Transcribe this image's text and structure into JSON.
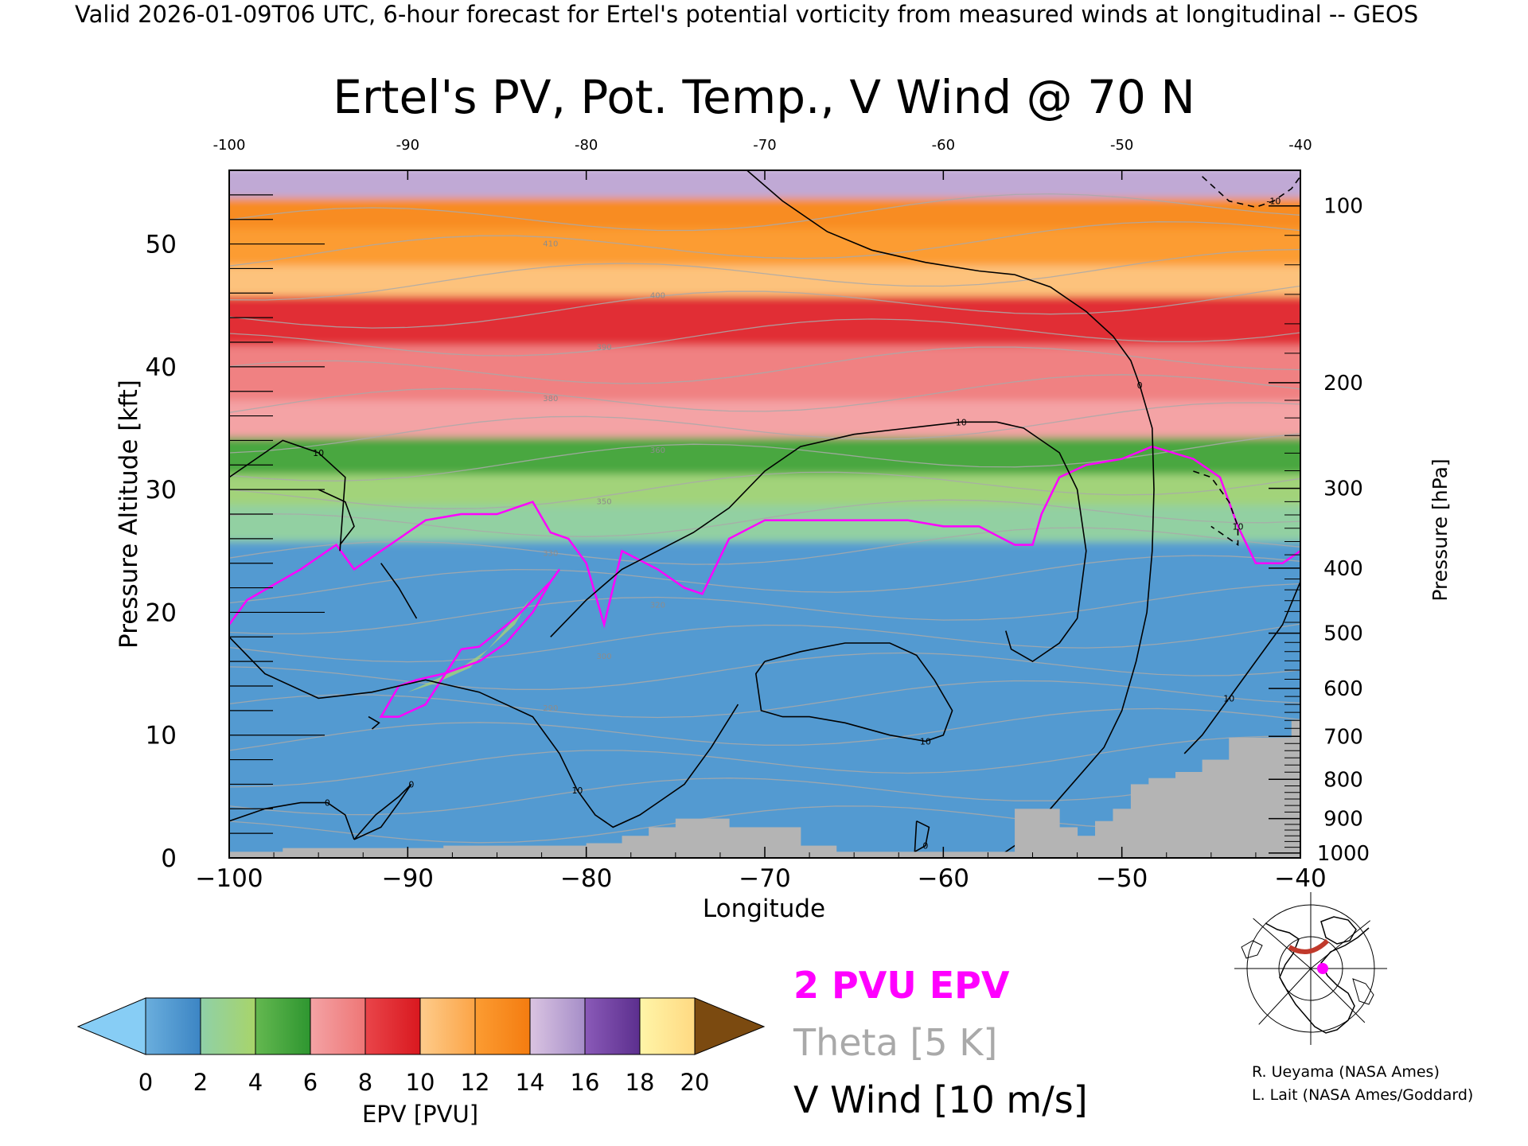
{
  "header": {
    "valid_line": "Valid 2026-01-09T06 UTC, 6-hour forecast for Ertel's potential vorticity from measured winds at longitudinal -- GEOS"
  },
  "chart_data": {
    "type": "heatmap",
    "title": "Ertel's PV, Pot. Temp., V Wind @ 70 N",
    "xlabel": "Longitude",
    "ylabel_left": "Pressure Altitude [kft]",
    "ylabel_right": "Pressure [hPa]",
    "xlim": [
      -100,
      -40
    ],
    "ylim_kft": [
      0,
      56
    ],
    "x_ticks": [
      "-100",
      "-90",
      "-80",
      "-70",
      "-60",
      "-50",
      "-40"
    ],
    "x_ticks_bottom": [
      "−100",
      "−90",
      "−80",
      "−70",
      "−60",
      "−50",
      "−40"
    ],
    "y_ticks_left": [
      "0",
      "10",
      "20",
      "30",
      "40",
      "50"
    ],
    "y_ticks_left_values": [
      0,
      10,
      20,
      30,
      40,
      50
    ],
    "pressure_ticks": [
      {
        "label": "100",
        "kft": 53.1
      },
      {
        "label": "200",
        "kft": 38.7
      },
      {
        "label": "300",
        "kft": 30.1
      },
      {
        "label": "400",
        "kft": 23.6
      },
      {
        "label": "500",
        "kft": 18.3
      },
      {
        "label": "600",
        "kft": 13.8
      },
      {
        "label": "700",
        "kft": 9.9
      },
      {
        "label": "800",
        "kft": 6.4
      },
      {
        "label": "900",
        "kft": 3.2
      },
      {
        "label": "1000",
        "kft": 0.4
      }
    ],
    "epv_layers_pvu": [
      {
        "bottom_kft": 0,
        "pvu": 1.0
      },
      {
        "bottom_kft": 26,
        "pvu": 2.2
      },
      {
        "bottom_kft": 29,
        "pvu": 3.5
      },
      {
        "bottom_kft": 31.5,
        "pvu": 5.0
      },
      {
        "bottom_kft": 34.5,
        "pvu": 6.0
      },
      {
        "bottom_kft": 37.5,
        "pvu": 7.5
      },
      {
        "bottom_kft": 42,
        "pvu": 9.0
      },
      {
        "bottom_kft": 46,
        "pvu": 10.5
      },
      {
        "bottom_kft": 48.5,
        "pvu": 12.0
      },
      {
        "bottom_kft": 51.5,
        "pvu": 13.0
      },
      {
        "bottom_kft": 54,
        "pvu": 15.0
      }
    ],
    "pv2_contour": {
      "label": "2 PVU EPV",
      "color": "#ff00ff",
      "x": [
        -100,
        -99,
        -96,
        -94,
        -93,
        -91,
        -89,
        -87,
        -85,
        -84,
        -83,
        -82,
        -81,
        -80,
        -79,
        -78.5,
        -78,
        -76,
        -74.5,
        -73.5,
        -72,
        -70,
        -68,
        -66,
        -64,
        -62,
        -60,
        -58,
        -56,
        -55,
        -54.5,
        -53.5,
        -52,
        -50,
        -48.3,
        -46,
        -44.5,
        -43.5,
        -42.5,
        -41,
        -40
      ],
      "y": [
        19,
        21,
        23.5,
        25.5,
        23.5,
        25.5,
        27.5,
        28,
        28,
        28.5,
        29,
        26.5,
        26,
        24,
        19,
        22,
        25,
        23.5,
        22,
        21.5,
        26,
        27.5,
        27.5,
        27.5,
        27.5,
        27.5,
        27,
        27,
        25.5,
        25.5,
        28,
        31,
        32,
        32.5,
        33.5,
        32.5,
        31,
        27,
        24,
        24,
        25
      ]
    },
    "pv2_low_contour": {
      "x": [
        -87,
        -86,
        -84,
        -83,
        -82,
        -81.5,
        -82,
        -83,
        -84.5,
        -86,
        -88,
        -89.5,
        -90.5,
        -91.5,
        -90.5,
        -89,
        -87
      ],
      "y": [
        17,
        17.2,
        19.5,
        21,
        22.5,
        23.5,
        22.5,
        20,
        17.5,
        16,
        15,
        14.5,
        14,
        11.5,
        11.5,
        12.5,
        17
      ]
    },
    "pv_cutoff_patch": {
      "x": [
        -86.5,
        -85.5,
        -84,
        -83.2,
        -84,
        -85.5,
        -87,
        -88.5,
        -90,
        -88.5,
        -86.5
      ],
      "y": [
        15.5,
        17,
        19.5,
        21,
        19,
        17,
        15.5,
        14.5,
        13.5,
        14.2,
        15.5
      ]
    },
    "v_wind_contours": [
      {
        "label": "0",
        "x": [
          -71,
          -69,
          -66.5,
          -64,
          -61,
          -58,
          -56,
          -54,
          -52,
          -50.5,
          -49.5,
          -49,
          -48.3,
          -48.2,
          -48.3,
          -48.6,
          -49.2,
          -50,
          -51,
          -52.5,
          -54,
          -55.5,
          -57
        ],
        "y": [
          56,
          53.5,
          51,
          49.5,
          48.5,
          47.8,
          47.5,
          46.5,
          44.5,
          42.5,
          40.5,
          38.5,
          35,
          30,
          25,
          20,
          16,
          12,
          9,
          6.5,
          4,
          1.5,
          0
        ]
      },
      {
        "label": "10",
        "x": [
          -82,
          -80,
          -78,
          -76,
          -74,
          -72,
          -70,
          -68,
          -65,
          -62,
          -59,
          -57,
          -55.5,
          -53.5,
          -52.5,
          -52,
          -52.5,
          -53.5,
          -55,
          -56.2,
          -56.5
        ],
        "y": [
          18,
          21,
          23.5,
          25,
          26.5,
          28.5,
          31.5,
          33.5,
          34.5,
          35,
          35.5,
          35.5,
          35,
          33,
          30,
          25,
          19.5,
          17.5,
          16,
          17,
          18.5
        ]
      },
      {
        "label": "10",
        "x": [
          -100,
          -98.5,
          -97,
          -95,
          -93.5,
          -93.8
        ],
        "y": [
          31,
          32.5,
          34,
          33,
          31,
          25
        ]
      },
      {
        "label": "10",
        "x": [
          -70,
          -68,
          -65.5,
          -63,
          -61.5,
          -60.5,
          -59.5,
          -60,
          -61,
          -63,
          -65.5,
          -67.5,
          -69,
          -70.2,
          -70.5,
          -70
        ],
        "y": [
          16,
          16.8,
          17.5,
          17.5,
          16.5,
          14.5,
          12,
          10,
          9.5,
          10,
          11,
          11.5,
          11.5,
          12,
          15,
          16
        ]
      },
      {
        "label": "10",
        "x": [
          -100,
          -98,
          -95,
          -92,
          -89,
          -86,
          -83,
          -81.5,
          -80.5,
          -79.5,
          -78.5,
          -77,
          -76,
          -74.5,
          -73,
          -71.5
        ],
        "y": [
          18,
          15,
          13,
          13.5,
          14.5,
          13.5,
          11.5,
          8.5,
          5.5,
          3.5,
          2.5,
          3.5,
          4.5,
          6,
          9,
          12.5
        ]
      },
      {
        "label": "0",
        "x": [
          -100,
          -98,
          -96,
          -94.5,
          -93.5,
          -93
        ],
        "y": [
          3,
          4,
          4.5,
          4.5,
          3.5,
          1.5
        ]
      },
      {
        "label": "0",
        "x": [
          -93,
          -91.5,
          -90.5,
          -89.8,
          -90.5,
          -91.8,
          -93
        ],
        "y": [
          1.5,
          2.5,
          4.5,
          6,
          5,
          3.5,
          1.5
        ]
      },
      {
        "label": "0",
        "x": [
          -61.5,
          -60.8,
          -61,
          -61.6,
          -61.5
        ],
        "y": [
          3,
          2.5,
          1,
          0.5,
          3
        ]
      },
      {
        "label": "",
        "x": [
          -91.5,
          -90.5,
          -89.5
        ],
        "y": [
          24,
          22,
          19.5
        ]
      },
      {
        "label": "",
        "x": [
          -95,
          -93.5,
          -93,
          -93.8
        ],
        "y": [
          30,
          29,
          27,
          25.5
        ]
      },
      {
        "label": "10",
        "x": [
          -46,
          -45,
          -44,
          -43.5,
          -43.5,
          -44,
          -45
        ],
        "y": [
          31.5,
          31,
          29,
          27,
          25.5,
          26,
          27
        ],
        "dashed": true
      },
      {
        "label": "-10",
        "x": [
          -45.5,
          -44,
          -42.5,
          -41.5,
          -40.5,
          -40
        ],
        "y": [
          55.5,
          53.5,
          53,
          53.5,
          54.5,
          55.5
        ],
        "dashed": true
      },
      {
        "label": "10",
        "x": [
          -40,
          -41,
          -42.5,
          -44,
          -45.5,
          -46.5
        ],
        "y": [
          22.5,
          19,
          16,
          13,
          10,
          8.5
        ]
      },
      {
        "label": "",
        "x": [
          -92.2,
          -91.6,
          -92
        ],
        "y": [
          11.5,
          11,
          10.5
        ]
      }
    ],
    "theta_levels_k": [
      290,
      295,
      300,
      305,
      310,
      315,
      320,
      325,
      330,
      335,
      340,
      345,
      350,
      360,
      370,
      380,
      390,
      400,
      410,
      420,
      440
    ],
    "theta_sample_labels": [
      "290",
      "300",
      "320",
      "330",
      "350",
      "360",
      "380",
      "390",
      "400",
      "410"
    ],
    "terrain_steps": [
      {
        "x0": -100,
        "x1": -97,
        "top_kft": 0.5
      },
      {
        "x0": -97,
        "x1": -88,
        "top_kft": 0.8
      },
      {
        "x0": -88,
        "x1": -80,
        "top_kft": 1.0
      },
      {
        "x0": -80,
        "x1": -78,
        "top_kft": 1.2
      },
      {
        "x0": -78,
        "x1": -76.5,
        "top_kft": 1.8
      },
      {
        "x0": -76.5,
        "x1": -75,
        "top_kft": 2.5
      },
      {
        "x0": -75,
        "x1": -72,
        "top_kft": 3.2
      },
      {
        "x0": -72,
        "x1": -68,
        "top_kft": 2.5
      },
      {
        "x0": -68,
        "x1": -66,
        "top_kft": 1.0
      },
      {
        "x0": -66,
        "x1": -56,
        "top_kft": 0.5
      },
      {
        "x0": -56,
        "x1": -53.5,
        "top_kft": 4.0
      },
      {
        "x0": -53.5,
        "x1": -52.5,
        "top_kft": 2.5
      },
      {
        "x0": -52.5,
        "x1": -51.5,
        "top_kft": 1.8
      },
      {
        "x0": -51.5,
        "x1": -50.5,
        "top_kft": 3.0
      },
      {
        "x0": -50.5,
        "x1": -49.5,
        "top_kft": 4.0
      },
      {
        "x0": -49.5,
        "x1": -48.5,
        "top_kft": 6.0
      },
      {
        "x0": -48.5,
        "x1": -47,
        "top_kft": 6.5
      },
      {
        "x0": -47,
        "x1": -45.5,
        "top_kft": 7.0
      },
      {
        "x0": -45.5,
        "x1": -44,
        "top_kft": 8.0
      },
      {
        "x0": -44,
        "x1": -42,
        "top_kft": 9.8
      },
      {
        "x0": -42,
        "x1": -40.5,
        "top_kft": 9.8
      },
      {
        "x0": -40.5,
        "x1": -40,
        "top_kft": 11.2
      }
    ],
    "colorbar": {
      "label": "EPV [PVU]",
      "ticks": [
        "0",
        "2",
        "4",
        "6",
        "8",
        "10",
        "12",
        "14",
        "16",
        "18",
        "20"
      ],
      "under_color": "#87cdf5",
      "over_color": "#7b4a10",
      "segments": [
        {
          "from": 0,
          "to": 2,
          "colors": [
            "#6aaedd",
            "#3c85c4"
          ]
        },
        {
          "from": 2,
          "to": 4,
          "colors": [
            "#8fd0a8",
            "#a8d46a"
          ]
        },
        {
          "from": 4,
          "to": 6,
          "colors": [
            "#64b850",
            "#2e9630"
          ]
        },
        {
          "from": 6,
          "to": 8,
          "colors": [
            "#f4a3a5",
            "#ee7676"
          ]
        },
        {
          "from": 8,
          "to": 10,
          "colors": [
            "#e9454a",
            "#d9181f"
          ]
        },
        {
          "from": 10,
          "to": 12,
          "colors": [
            "#fdcc8c",
            "#fca446"
          ]
        },
        {
          "from": 12,
          "to": 14,
          "colors": [
            "#fc9c32",
            "#f47c10"
          ]
        },
        {
          "from": 14,
          "to": 16,
          "colors": [
            "#dac4e2",
            "#a68ec8"
          ]
        },
        {
          "from": 16,
          "to": 18,
          "colors": [
            "#8a5ab8",
            "#5c2f8e"
          ]
        },
        {
          "from": 18,
          "to": 20,
          "colors": [
            "#fff5a8",
            "#ffd982"
          ]
        }
      ]
    },
    "legend": {
      "pv": "2 PVU EPV",
      "theta": "Theta [5 K]",
      "vwind": "V Wind [10 m/s]"
    },
    "colors": {
      "pv2": "#ff00ff",
      "theta": "#a9a9a9",
      "vwind": "#000000",
      "terrain": "#b4b4b4",
      "marker": "#ff00ff",
      "section_line": "#c0392b"
    }
  },
  "credits": {
    "line1": "R. Ueyama (NASA Ames)",
    "line2": "L. Lait (NASA Ames/Goddard)"
  }
}
